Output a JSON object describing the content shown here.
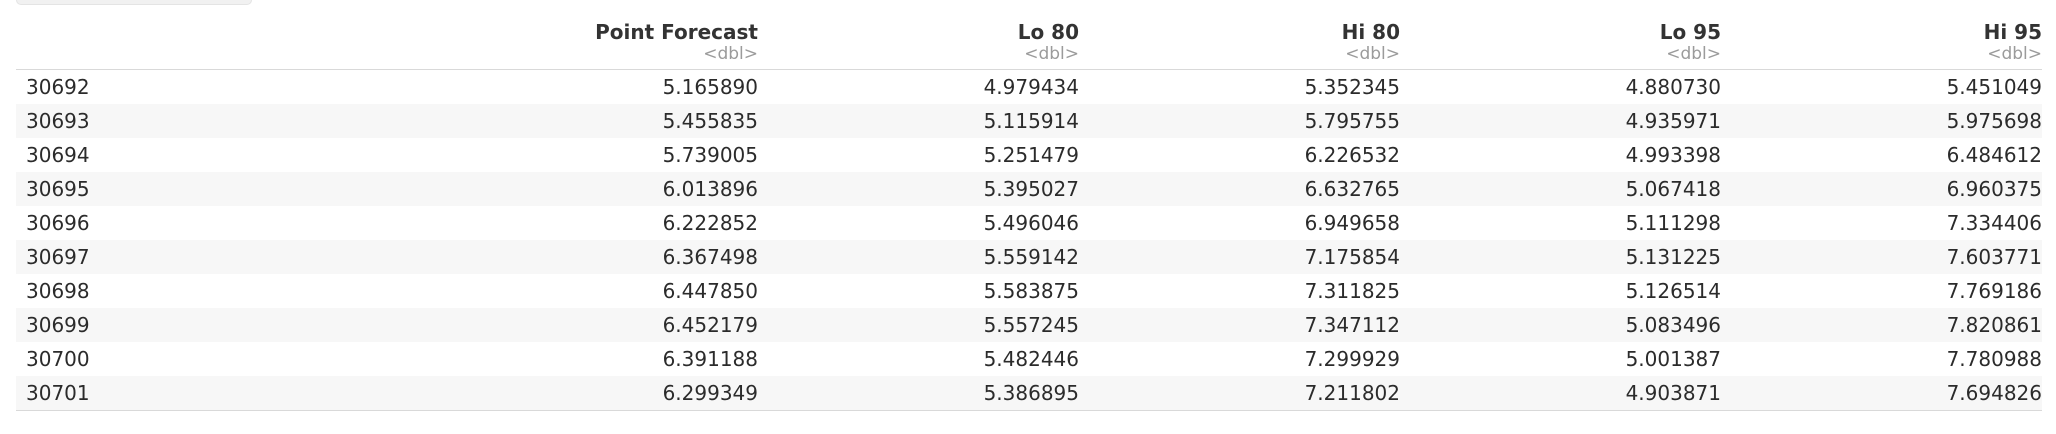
{
  "table": {
    "columns": [
      {
        "label": "",
        "type": ""
      },
      {
        "label": "Point Forecast",
        "type": "<dbl>"
      },
      {
        "label": "Lo 80",
        "type": "<dbl>"
      },
      {
        "label": "Hi 80",
        "type": "<dbl>"
      },
      {
        "label": "Lo 95",
        "type": "<dbl>"
      },
      {
        "label": "Hi 95",
        "type": "<dbl>"
      }
    ],
    "rows": [
      [
        "30692",
        "5.165890",
        "4.979434",
        "5.352345",
        "4.880730",
        "5.451049"
      ],
      [
        "30693",
        "5.455835",
        "5.115914",
        "5.795755",
        "4.935971",
        "5.975698"
      ],
      [
        "30694",
        "5.739005",
        "5.251479",
        "6.226532",
        "4.993398",
        "6.484612"
      ],
      [
        "30695",
        "6.013896",
        "5.395027",
        "6.632765",
        "5.067418",
        "6.960375"
      ],
      [
        "30696",
        "6.222852",
        "5.496046",
        "6.949658",
        "5.111298",
        "7.334406"
      ],
      [
        "30697",
        "6.367498",
        "5.559142",
        "7.175854",
        "5.131225",
        "7.603771"
      ],
      [
        "30698",
        "6.447850",
        "5.583875",
        "7.311825",
        "5.126514",
        "7.769186"
      ],
      [
        "30699",
        "6.452179",
        "5.557245",
        "7.347112",
        "5.083496",
        "7.820861"
      ],
      [
        "30700",
        "6.391188",
        "5.482446",
        "7.299929",
        "5.001387",
        "7.780988"
      ],
      [
        "30701",
        "6.299349",
        "5.386895",
        "7.211802",
        "4.903871",
        "7.694826"
      ]
    ]
  }
}
